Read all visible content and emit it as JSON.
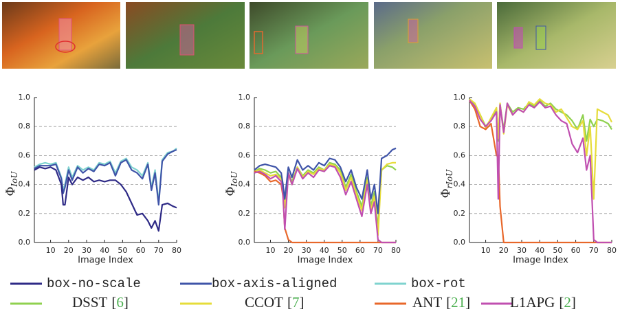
{
  "chart_data": [
    {
      "type": "line",
      "ylabel": {
        "symbol": "Φ",
        "subscript": "IoU"
      },
      "xlabel": "Image Index",
      "xlim": [
        1,
        80
      ],
      "xticks": [
        10,
        20,
        30,
        40,
        50,
        60,
        70,
        80
      ],
      "ylim": [
        0,
        1
      ],
      "yticks": [
        {
          "value": 0,
          "label": "0.0"
        },
        {
          "value": 0.2,
          "label": "0.2"
        },
        {
          "value": 0.4,
          "label": "0.4"
        },
        {
          "value": 0.6,
          "label": "0.6"
        },
        {
          "value": 0.8,
          "label": "0.8"
        },
        {
          "value": 1,
          "label": "1.0"
        }
      ],
      "grid": true,
      "x": [
        1,
        4,
        7,
        10,
        13,
        16,
        17,
        18,
        20,
        22,
        25,
        28,
        31,
        34,
        37,
        40,
        43,
        46,
        49,
        52,
        55,
        58,
        61,
        64,
        66,
        68,
        70,
        72,
        75,
        78,
        80
      ],
      "series": [
        {
          "name": "box-rot",
          "values": [
            0.52,
            0.54,
            0.55,
            0.54,
            0.55,
            0.45,
            0.36,
            0.4,
            0.52,
            0.45,
            0.53,
            0.5,
            0.52,
            0.5,
            0.55,
            0.54,
            0.56,
            0.48,
            0.56,
            0.58,
            0.52,
            0.5,
            0.46,
            0.55,
            0.38,
            0.5,
            0.28,
            0.57,
            0.62,
            0.63,
            0.65
          ]
        },
        {
          "name": "box-axis-aligned",
          "values": [
            0.51,
            0.53,
            0.53,
            0.53,
            0.54,
            0.44,
            0.34,
            0.38,
            0.5,
            0.43,
            0.52,
            0.48,
            0.51,
            0.49,
            0.54,
            0.53,
            0.55,
            0.46,
            0.55,
            0.57,
            0.5,
            0.48,
            0.44,
            0.54,
            0.36,
            0.48,
            0.26,
            0.56,
            0.61,
            0.63,
            0.64
          ]
        },
        {
          "name": "box-no-scale",
          "values": [
            0.5,
            0.52,
            0.51,
            0.52,
            0.5,
            0.4,
            0.26,
            0.26,
            0.45,
            0.4,
            0.45,
            0.43,
            0.45,
            0.42,
            0.43,
            0.42,
            0.43,
            0.43,
            0.4,
            0.35,
            0.27,
            0.19,
            0.2,
            0.15,
            0.1,
            0.15,
            0.08,
            0.26,
            0.27,
            0.25,
            0.24
          ]
        }
      ]
    },
    {
      "type": "line",
      "ylabel": {
        "symbol": "Φ",
        "subscript": "IoU"
      },
      "xlabel": "Image Index",
      "xlim": [
        1,
        80
      ],
      "xticks": [
        10,
        20,
        30,
        40,
        50,
        60,
        70,
        80
      ],
      "ylim": [
        0,
        1
      ],
      "yticks": [
        {
          "value": 0,
          "label": "0.0"
        },
        {
          "value": 0.2,
          "label": "0.2"
        },
        {
          "value": 0.4,
          "label": "0.4"
        },
        {
          "value": 0.6,
          "label": "0.6"
        },
        {
          "value": 0.8,
          "label": "0.8"
        },
        {
          "value": 1,
          "label": "1.0"
        }
      ],
      "grid": true,
      "x": [
        1,
        4,
        7,
        10,
        13,
        16,
        17,
        18,
        20,
        22,
        25,
        28,
        31,
        34,
        37,
        40,
        43,
        46,
        49,
        52,
        55,
        58,
        61,
        64,
        66,
        68,
        70,
        72,
        75,
        78,
        80
      ],
      "series": [
        {
          "name": "DSST",
          "values": [
            0.49,
            0.51,
            0.5,
            0.48,
            0.49,
            0.45,
            0.38,
            0.25,
            0.48,
            0.42,
            0.52,
            0.46,
            0.5,
            0.48,
            0.52,
            0.5,
            0.55,
            0.54,
            0.5,
            0.38,
            0.47,
            0.35,
            0.25,
            0.45,
            0.25,
            0.35,
            0.1,
            0.5,
            0.53,
            0.52,
            0.5
          ]
        },
        {
          "name": "CCOT",
          "values": [
            0.49,
            0.5,
            0.48,
            0.46,
            0.47,
            0.44,
            0.37,
            0.24,
            0.47,
            0.4,
            0.52,
            0.45,
            0.49,
            0.47,
            0.51,
            0.5,
            0.54,
            0.53,
            0.48,
            0.36,
            0.45,
            0.33,
            0.22,
            0.43,
            0.22,
            0.32,
            0.05,
            0.5,
            0.54,
            0.55,
            0.55
          ]
        },
        {
          "name": "ANT",
          "values": [
            0.49,
            0.48,
            0.46,
            0.42,
            0.43,
            0.4,
            0.32,
            0.1,
            0.02,
            0,
            0,
            0,
            0,
            0,
            0,
            0,
            0,
            0,
            0,
            0,
            0,
            0,
            0,
            0,
            0,
            0,
            0,
            0,
            0,
            0,
            0
          ]
        },
        {
          "name": "L1APG",
          "values": [
            0.48,
            0.49,
            0.47,
            0.44,
            0.46,
            0.42,
            0.34,
            0.09,
            0.48,
            0.4,
            0.51,
            0.44,
            0.48,
            0.45,
            0.5,
            0.49,
            0.53,
            0.52,
            0.45,
            0.33,
            0.42,
            0.3,
            0.18,
            0.4,
            0.2,
            0.28,
            0.02,
            0,
            0,
            0,
            0
          ]
        },
        {
          "name": "box-axis-aligned",
          "values": [
            0.5,
            0.53,
            0.54,
            0.53,
            0.52,
            0.48,
            0.4,
            0.3,
            0.52,
            0.45,
            0.57,
            0.5,
            0.53,
            0.5,
            0.55,
            0.53,
            0.58,
            0.57,
            0.52,
            0.42,
            0.5,
            0.38,
            0.3,
            0.5,
            0.3,
            0.4,
            0.2,
            0.58,
            0.6,
            0.64,
            0.65
          ]
        }
      ]
    },
    {
      "type": "line",
      "ylabel": {
        "symbol": "Φ",
        "subscript": "rIoU"
      },
      "xlabel": "Image Index",
      "xlim": [
        1,
        80
      ],
      "xticks": [
        10,
        20,
        30,
        40,
        50,
        60,
        70,
        80
      ],
      "ylim": [
        0,
        1
      ],
      "yticks": [
        {
          "value": 0,
          "label": "0.0"
        },
        {
          "value": 0.2,
          "label": "0.2"
        },
        {
          "value": 0.4,
          "label": "0.4"
        },
        {
          "value": 0.6,
          "label": "0.6"
        },
        {
          "value": 0.8,
          "label": "0.8"
        },
        {
          "value": 1,
          "label": "1.0"
        }
      ],
      "grid": true,
      "x": [
        1,
        4,
        7,
        10,
        13,
        16,
        17,
        18,
        20,
        22,
        25,
        28,
        31,
        34,
        37,
        40,
        43,
        46,
        49,
        52,
        55,
        58,
        61,
        64,
        66,
        68,
        70,
        72,
        75,
        78,
        80
      ],
      "series": [
        {
          "name": "DSST",
          "values": [
            0.98,
            0.95,
            0.88,
            0.8,
            0.85,
            0.92,
            0.7,
            0.95,
            0.78,
            0.96,
            0.9,
            0.93,
            0.92,
            0.96,
            0.94,
            0.98,
            0.94,
            0.96,
            0.92,
            0.9,
            0.88,
            0.84,
            0.78,
            0.88,
            0.7,
            0.85,
            0.8,
            0.85,
            0.84,
            0.82,
            0.78
          ]
        },
        {
          "name": "CCOT",
          "values": [
            0.99,
            0.96,
            0.88,
            0.79,
            0.86,
            0.93,
            0.72,
            0.96,
            0.75,
            0.95,
            0.88,
            0.92,
            0.9,
            0.97,
            0.95,
            0.99,
            0.96,
            0.95,
            0.9,
            0.92,
            0.86,
            0.8,
            0.78,
            0.84,
            0.6,
            0.8,
            0.3,
            0.92,
            0.9,
            0.88,
            0.83
          ]
        },
        {
          "name": "ANT",
          "values": [
            0.98,
            0.92,
            0.8,
            0.78,
            0.82,
            0.6,
            0.6,
            0.25,
            0,
            0,
            0,
            0,
            0,
            0,
            0,
            0,
            0,
            0,
            0,
            0,
            0,
            0,
            0,
            0,
            0,
            0,
            0,
            0,
            0,
            0,
            0
          ]
        },
        {
          "name": "L1APG",
          "values": [
            0.98,
            0.94,
            0.85,
            0.8,
            0.84,
            0.9,
            0.3,
            0.95,
            0.76,
            0.96,
            0.88,
            0.92,
            0.9,
            0.95,
            0.93,
            0.97,
            0.93,
            0.94,
            0.88,
            0.84,
            0.82,
            0.68,
            0.62,
            0.72,
            0.5,
            0.6,
            0.02,
            0,
            0,
            0,
            0
          ]
        }
      ]
    }
  ],
  "legend": [
    {
      "name": "box-no-scale",
      "color": "#2e2a86",
      "style": "mono"
    },
    {
      "name": "box-axis-aligned",
      "color": "#3f54a8",
      "style": "mono"
    },
    {
      "name": "box-rot",
      "color": "#7fd3cf",
      "style": "mono"
    },
    {
      "name": "DSST",
      "color": "#8fd14f",
      "style": "serif",
      "cite": [
        "[",
        "6",
        "]"
      ]
    },
    {
      "name": "CCOT",
      "color": "#e6dc3a",
      "style": "serif",
      "cite": [
        "[",
        "7",
        "]"
      ]
    },
    {
      "name": "ANT",
      "color": "#e8672a",
      "style": "serif",
      "cite": [
        "[",
        "21",
        "]"
      ]
    },
    {
      "name": "L1APG",
      "color": "#c04fb0",
      "style": "serif",
      "cite": [
        "[",
        "2",
        "]"
      ]
    }
  ]
}
